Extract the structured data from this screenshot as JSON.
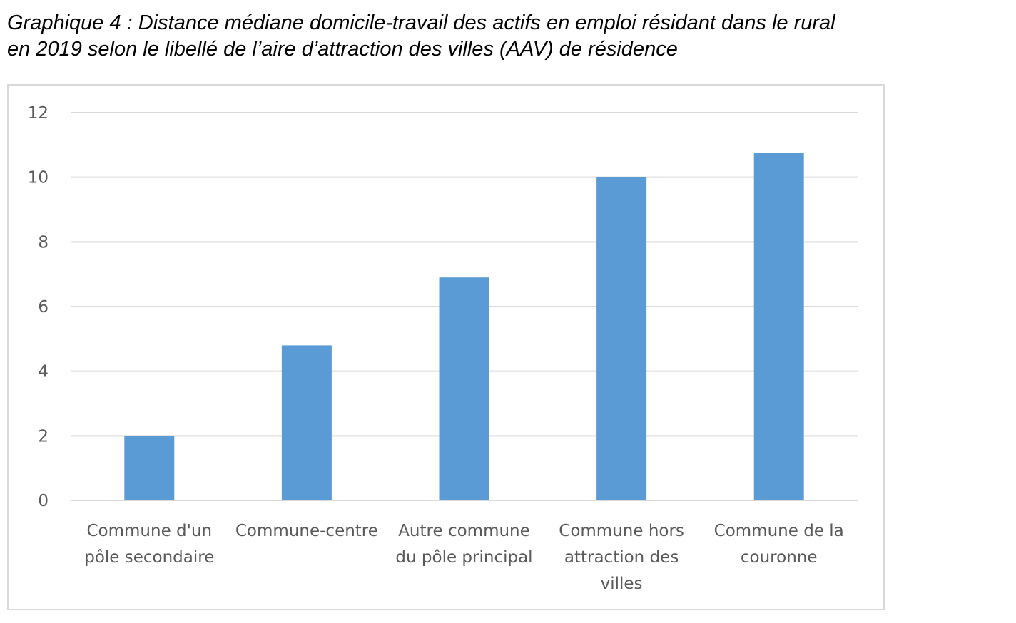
{
  "caption": {
    "line1": "Graphique 4 : Distance médiane domicile-travail des actifs en emploi résidant dans le rural",
    "line2": "en 2019 selon le libellé de l’aire d’attraction des villes (AAV) de résidence"
  },
  "chart_data": {
    "type": "bar",
    "categories": [
      [
        "Commune d'un",
        "pôle secondaire"
      ],
      [
        "Commune-centre"
      ],
      [
        "Autre commune",
        "du pôle principal"
      ],
      [
        "Commune hors",
        "attraction des",
        "villes"
      ],
      [
        "Commune de la",
        "couronne"
      ]
    ],
    "values": [
      2.0,
      4.8,
      6.9,
      10.0,
      10.75
    ],
    "ylim": [
      0,
      12
    ],
    "yticks": [
      0,
      2,
      4,
      6,
      8,
      10,
      12
    ],
    "grid": true,
    "legend": "none",
    "bar_color": "#5b9bd5",
    "grid_color": "#d9d9d9"
  }
}
